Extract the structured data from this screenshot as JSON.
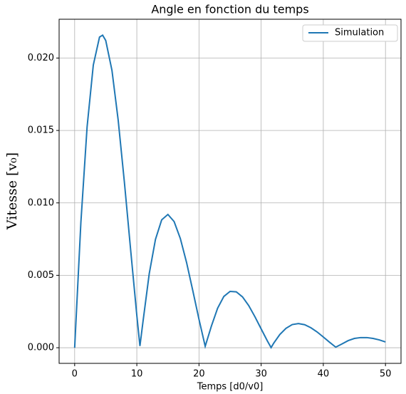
{
  "chart_data": {
    "type": "line",
    "title": "Angle en fonction du temps",
    "xlabel": "Temps [d0/v0]",
    "ylabel": "Vitesse [v₀]",
    "xlim": [
      -2.5,
      52.5
    ],
    "ylim": [
      -0.00108,
      0.02268
    ],
    "xticks": [
      0,
      10,
      20,
      30,
      40,
      50
    ],
    "yticks": [
      {
        "value": 0,
        "label": "0.000"
      },
      {
        "value": 0.005,
        "label": "0.005"
      },
      {
        "value": 0.01,
        "label": "0.010"
      },
      {
        "value": 0.015,
        "label": "0.015"
      },
      {
        "value": 0.02,
        "label": "0.020"
      }
    ],
    "grid": true,
    "legend": "upper right",
    "x": [
      0,
      1,
      2,
      3,
      4,
      4.5,
      5,
      6,
      7,
      8,
      9,
      10,
      10.5,
      11,
      12,
      13,
      14,
      15,
      16,
      17,
      18,
      19,
      20,
      21,
      22,
      23,
      24,
      25,
      26,
      27,
      28,
      29,
      30,
      31,
      31.6,
      32,
      33,
      34,
      35,
      36,
      37,
      38,
      39,
      40,
      41,
      42,
      43,
      44,
      45,
      46,
      47,
      48,
      49,
      50
    ],
    "series": [
      {
        "name": "Simulation",
        "color": "#1f77b4",
        "values": [
          0,
          0.00865,
          0.01525,
          0.01952,
          0.02145,
          0.02158,
          0.02121,
          0.01915,
          0.01572,
          0.01143,
          0.00678,
          0.00223,
          0.00012,
          0.00183,
          0.00512,
          0.00748,
          0.00883,
          0.0092,
          0.00871,
          0.00754,
          0.00589,
          0.00395,
          0.00196,
          0.0001,
          0.0015,
          0.00273,
          0.00354,
          0.00389,
          0.00386,
          0.00351,
          0.00291,
          0.00214,
          0.0013,
          0.00047,
          1e-05,
          0.0003,
          0.00091,
          0.00134,
          0.0016,
          0.00167,
          0.00159,
          0.00138,
          0.00109,
          0.00074,
          0.00038,
          4e-05,
          0.00026,
          0.00049,
          0.00064,
          0.0007,
          0.0007,
          0.00064,
          0.00054,
          0.0004
        ]
      }
    ]
  }
}
